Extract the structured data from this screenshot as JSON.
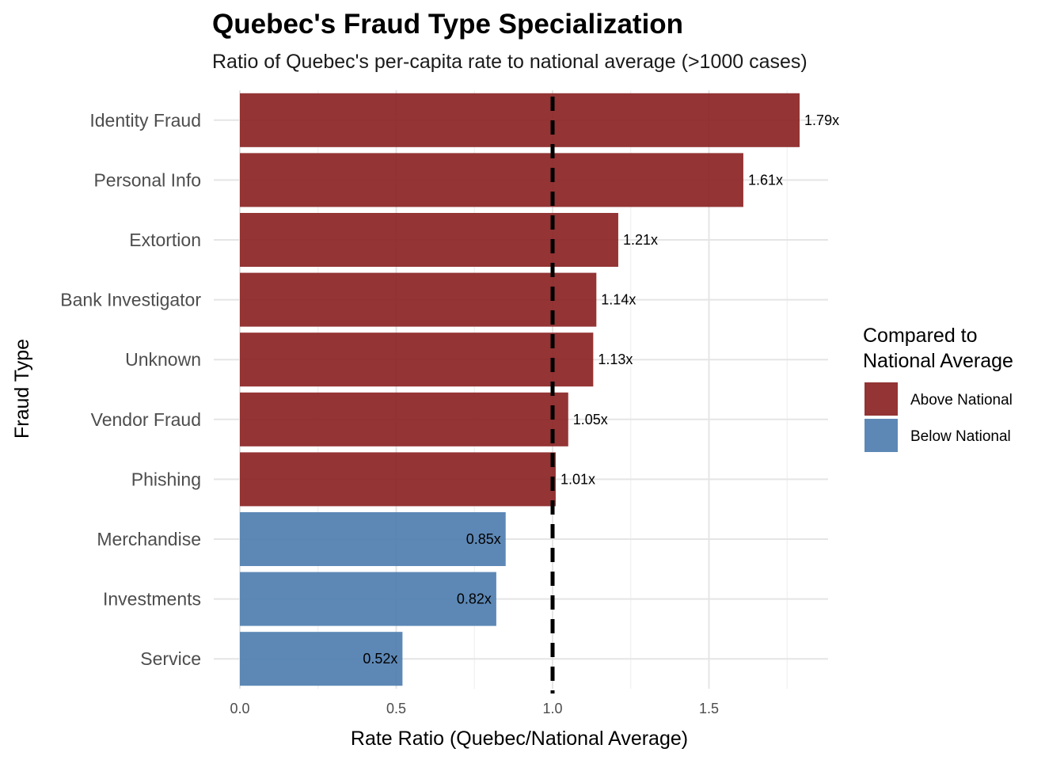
{
  "chart_data": {
    "type": "bar",
    "orientation": "horizontal",
    "title": "Quebec's Fraud Type Specialization",
    "subtitle": "Ratio of Quebec's per-capita rate to national average (>1000 cases)",
    "xlabel": "Rate Ratio (Quebec/National Average)",
    "ylabel": "Fraud Type",
    "categories": [
      "Identity Fraud",
      "Personal Info",
      "Extortion",
      "Bank Investigator",
      "Unknown",
      "Vendor Fraud",
      "Phishing",
      "Merchandise",
      "Investments",
      "Service"
    ],
    "values": [
      1.79,
      1.61,
      1.21,
      1.14,
      1.13,
      1.05,
      1.01,
      0.85,
      0.82,
      0.52
    ],
    "labels": [
      "1.79x",
      "1.61x",
      "1.21x",
      "1.14x",
      "1.13x",
      "1.05x",
      "1.01x",
      "0.85x",
      "0.82x",
      "0.52x"
    ],
    "groups": [
      "Above National",
      "Above National",
      "Above National",
      "Above National",
      "Above National",
      "Above National",
      "Above National",
      "Below National",
      "Below National",
      "Below National"
    ],
    "xlim": [
      0,
      1.88
    ],
    "xticks": [
      0.0,
      0.5,
      1.0,
      1.5
    ],
    "xtick_labels": [
      "0.0",
      "0.5",
      "1.0",
      "1.5"
    ],
    "reference_line": 1.0,
    "grid": true,
    "legend": {
      "title_line1": "Compared to",
      "title_line2": "National Average",
      "placement": "right",
      "entries": [
        {
          "label": "Above National",
          "color": "#8B2323"
        },
        {
          "label": "Below National",
          "color": "#4F7EB0"
        }
      ]
    }
  }
}
